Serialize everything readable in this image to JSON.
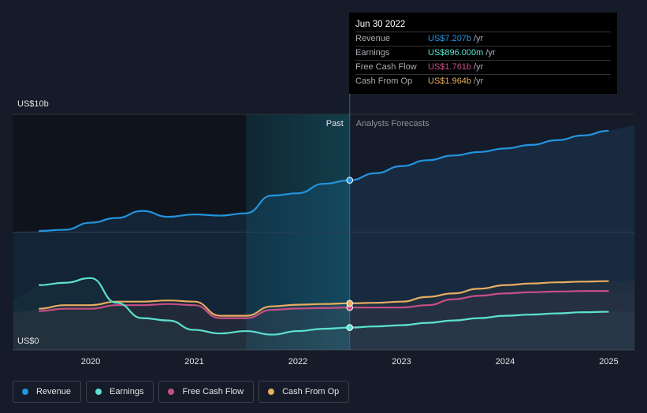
{
  "chart_data": {
    "type": "area",
    "ylabel_top": "US$10b",
    "ylabel_bottom": "US$0",
    "ylim": [
      0,
      10
    ],
    "xlim": [
      2019.5,
      2025.25
    ],
    "x_ticks": [
      "2020",
      "2021",
      "2022",
      "2023",
      "2024",
      "2025"
    ],
    "x_tick_values": [
      2020,
      2021,
      2022,
      2023,
      2024,
      2025
    ],
    "divider_x": 2022.5,
    "past_label": "Past",
    "forecast_label": "Analysts Forecasts",
    "grid": true,
    "series": [
      {
        "name": "Revenue",
        "color": "#2394df",
        "fill": true,
        "x": [
          2019.25,
          2019.5,
          2019.75,
          2020,
          2020.25,
          2020.5,
          2020.75,
          2021,
          2021.25,
          2021.5,
          2021.75,
          2022,
          2022.25,
          2022.5,
          2022.75,
          2023,
          2023.25,
          2023.5,
          2023.75,
          2024,
          2024.25,
          2024.5,
          2024.75,
          2025,
          2025.25
        ],
        "y": [
          5.0,
          5.05,
          5.1,
          5.4,
          5.6,
          5.9,
          5.65,
          5.75,
          5.7,
          5.8,
          6.55,
          6.65,
          7.05,
          7.2,
          7.5,
          7.8,
          8.05,
          8.25,
          8.4,
          8.55,
          8.7,
          8.9,
          9.1,
          9.3,
          9.55
        ]
      },
      {
        "name": "Earnings",
        "color": "#5ce1cf",
        "fill": false,
        "x": [
          2019.25,
          2019.5,
          2019.75,
          2020,
          2020.25,
          2020.5,
          2020.75,
          2021,
          2021.25,
          2021.5,
          2021.75,
          2022,
          2022.25,
          2022.5,
          2022.75,
          2023,
          2023.25,
          2023.5,
          2023.75,
          2024,
          2024.25,
          2024.5,
          2024.75,
          2025,
          2025.25
        ],
        "y": [
          2.1,
          2.75,
          2.85,
          3.05,
          2.0,
          1.35,
          1.25,
          0.85,
          0.7,
          0.8,
          0.65,
          0.8,
          0.9,
          0.95,
          1.0,
          1.05,
          1.15,
          1.25,
          1.35,
          1.45,
          1.5,
          1.55,
          1.6,
          1.62,
          1.65
        ]
      },
      {
        "name": "Free Cash Flow",
        "color": "#c84f86",
        "fill": false,
        "x": [
          2019.25,
          2019.5,
          2019.75,
          2020,
          2020.25,
          2020.5,
          2020.75,
          2021,
          2021.25,
          2021.5,
          2021.75,
          2022,
          2022.25,
          2022.5,
          2022.75,
          2023,
          2023.25,
          2023.5,
          2023.75,
          2024,
          2024.25,
          2024.5,
          2024.75,
          2025,
          2025.25
        ],
        "y": [
          1.55,
          1.65,
          1.75,
          1.75,
          1.9,
          1.9,
          1.95,
          1.9,
          1.35,
          1.35,
          1.7,
          1.76,
          1.78,
          1.8,
          1.8,
          1.8,
          1.9,
          2.15,
          2.3,
          2.4,
          2.45,
          2.48,
          2.5,
          2.5,
          2.5
        ]
      },
      {
        "name": "Cash From Op",
        "color": "#e8ad61",
        "fill": false,
        "x": [
          2019.25,
          2019.5,
          2019.75,
          2020,
          2020.25,
          2020.5,
          2020.75,
          2021,
          2021.25,
          2021.5,
          2021.75,
          2022,
          2022.25,
          2022.5,
          2022.75,
          2023,
          2023.25,
          2023.5,
          2023.75,
          2024,
          2024.25,
          2024.5,
          2024.75,
          2025,
          2025.25
        ],
        "y": [
          1.6,
          1.75,
          1.9,
          1.9,
          2.05,
          2.05,
          2.1,
          2.05,
          1.45,
          1.45,
          1.85,
          1.92,
          1.95,
          1.98,
          2.0,
          2.05,
          2.25,
          2.4,
          2.6,
          2.75,
          2.82,
          2.87,
          2.9,
          2.92,
          2.94
        ]
      }
    ]
  },
  "tooltip": {
    "date": "Jun 30 2022",
    "rows": [
      {
        "label": "Revenue",
        "value": "US$7.207b",
        "unit": "/yr",
        "color": "#2394df"
      },
      {
        "label": "Earnings",
        "value": "US$896.000m",
        "unit": "/yr",
        "color": "#5ce1cf"
      },
      {
        "label": "Free Cash Flow",
        "value": "US$1.761b",
        "unit": "/yr",
        "color": "#c84f86"
      },
      {
        "label": "Cash From Op",
        "value": "US$1.964b",
        "unit": "/yr",
        "color": "#e8ad61"
      }
    ]
  },
  "legend": [
    {
      "label": "Revenue",
      "color": "#2394df"
    },
    {
      "label": "Earnings",
      "color": "#5ce1cf"
    },
    {
      "label": "Free Cash Flow",
      "color": "#c84f86"
    },
    {
      "label": "Cash From Op",
      "color": "#e8ad61"
    }
  ]
}
